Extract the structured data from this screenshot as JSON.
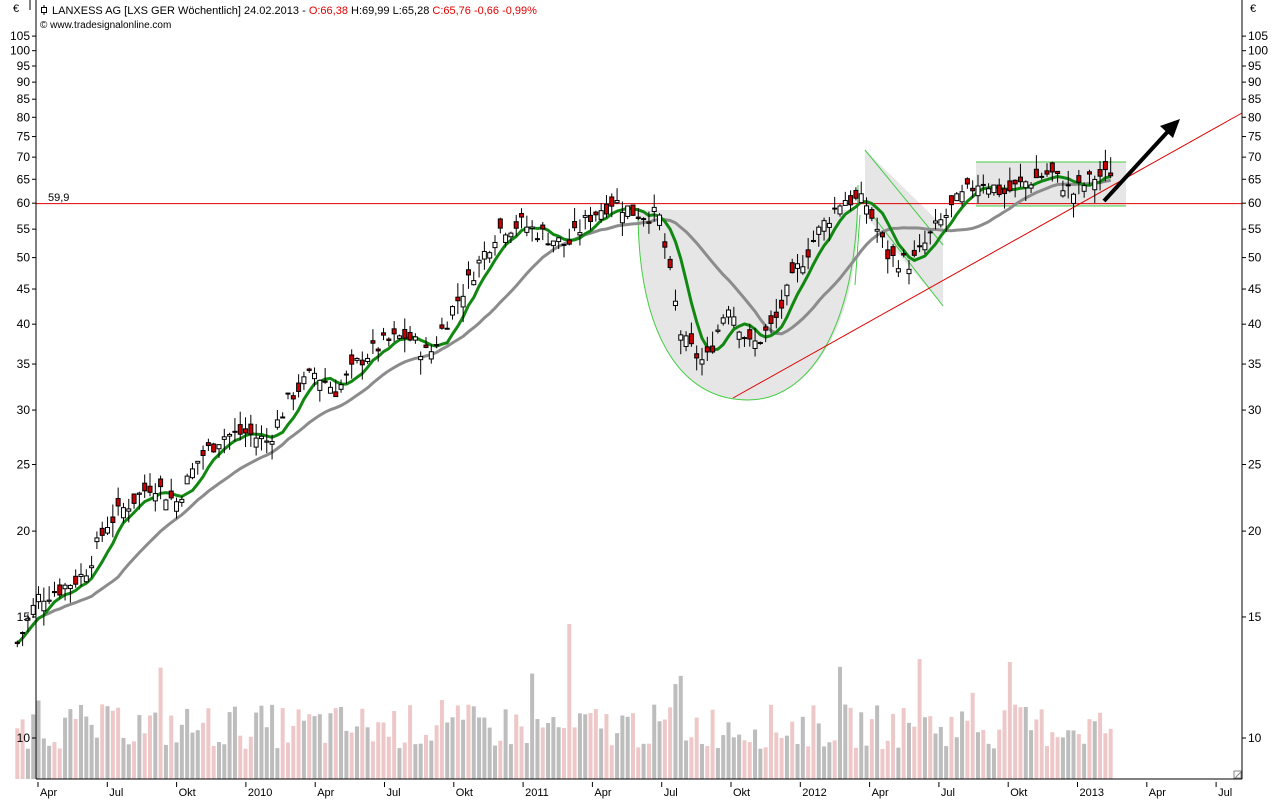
{
  "header": {
    "currency_left": "€",
    "currency_right": "€",
    "instrument": "LANXESS AG [LXS GER  Wöchentlich] 24.02.2013 - ",
    "open": "O:66,38",
    "high": "H:69,99",
    "low": "L:65,28",
    "close_change": "C:65,76 -0,66 -0,99%",
    "source": "www.tradesignalonline.com"
  },
  "colors": {
    "axis": "#000000",
    "candle_up_fill": "#ffffff",
    "candle_down_fill": "#cc0000",
    "ma_fast": "#118811",
    "ma_slow": "#8c8c8c",
    "support_line": "#e00000",
    "trend_line": "#e00000",
    "pattern_outline": "#44cc44",
    "pattern_fill": "#e6e6e6",
    "volume_up": "#bdbdbd",
    "volume_down": "#eec8c8",
    "arrow": "#000000"
  },
  "chart_data": {
    "type": "candlestick",
    "title": "LANXESS AG [LXS GER Wöchentlich] 24.02.2013",
    "last_bar": {
      "date": "24.02.2013",
      "open": 66.38,
      "high": 69.99,
      "low": 65.28,
      "close": 65.76,
      "change": -0.66,
      "change_pct": -0.99
    },
    "yscale": "log",
    "ylim": [
      8.5,
      110
    ],
    "yticks": [
      10,
      15,
      20,
      25,
      30,
      35,
      40,
      45,
      50,
      55,
      60,
      65,
      70,
      75,
      80,
      85,
      90,
      95,
      100,
      105
    ],
    "xticks": [
      "Apr",
      "Jul",
      "Okt",
      "2010",
      "Apr",
      "Jul",
      "Okt",
      "2011",
      "Apr",
      "Jul",
      "Okt",
      "2012",
      "Apr",
      "Jul",
      "Okt",
      "2013",
      "Apr",
      "Jul"
    ],
    "xrange": [
      "Mar 2009",
      "Aug 2013"
    ],
    "ylabel": "€",
    "annotations": [
      {
        "type": "horizontal_line",
        "value": 59.9,
        "label": "59,9",
        "color": "#e00000"
      },
      {
        "type": "trend_line",
        "from": [
          "Okt 2011",
          31.2
        ],
        "to": [
          "Aug 2013",
          81
        ],
        "color": "#e00000"
      },
      {
        "type": "cup",
        "from": "Jun 2011",
        "to": "Mar 2012",
        "top": 58.5,
        "bottom": 31
      },
      {
        "type": "flag_channel",
        "from": "Mar 2012",
        "to": "Jul 2012"
      },
      {
        "type": "rectangle",
        "from": "Sep 2012",
        "to": "Feb 2013",
        "top": 69,
        "bottom": 59.9
      },
      {
        "type": "arrow",
        "from": [
          "Jan 2013",
          61
        ],
        "to": [
          "Apr 2013",
          79
        ],
        "direction": "up"
      }
    ],
    "series": [
      {
        "name": "Close (approx. weekly path)",
        "points": [
          [
            "2009-03",
            13.5
          ],
          [
            "2009-04",
            16.0
          ],
          [
            "2009-05",
            16.5
          ],
          [
            "2009-06",
            17.3
          ],
          [
            "2009-07",
            20.5
          ],
          [
            "2009-08",
            22.0
          ],
          [
            "2009-09",
            23.5
          ],
          [
            "2009-10",
            22.0
          ],
          [
            "2009-11",
            25.5
          ],
          [
            "2009-12",
            27.5
          ],
          [
            "2010-01",
            27.8
          ],
          [
            "2010-02",
            27.0
          ],
          [
            "2010-03",
            31.5
          ],
          [
            "2010-04",
            34.0
          ],
          [
            "2010-05",
            32.0
          ],
          [
            "2010-06",
            35.5
          ],
          [
            "2010-07",
            37.5
          ],
          [
            "2010-08",
            38.5
          ],
          [
            "2010-09",
            36.0
          ],
          [
            "2010-10",
            42.0
          ],
          [
            "2010-11",
            48.0
          ],
          [
            "2010-12",
            55.0
          ],
          [
            "2011-01",
            56.0
          ],
          [
            "2011-02",
            54.0
          ],
          [
            "2011-03",
            52.0
          ],
          [
            "2011-04",
            57.5
          ],
          [
            "2011-05",
            60.5
          ],
          [
            "2011-06",
            58.0
          ],
          [
            "2011-07",
            57.5
          ],
          [
            "2011-08",
            38.0
          ],
          [
            "2011-09",
            35.0
          ],
          [
            "2011-10",
            43.0
          ],
          [
            "2011-11",
            37.0
          ],
          [
            "2011-12",
            40.0
          ],
          [
            "2012-01",
            48.0
          ],
          [
            "2012-02",
            55.0
          ],
          [
            "2012-03",
            61.0
          ],
          [
            "2012-04",
            60.0
          ],
          [
            "2012-05",
            50.0
          ],
          [
            "2012-06",
            49.0
          ],
          [
            "2012-07",
            55.0
          ],
          [
            "2012-08",
            60.5
          ],
          [
            "2012-09",
            65.0
          ],
          [
            "2012-10",
            62.0
          ],
          [
            "2012-11",
            64.5
          ],
          [
            "2012-12",
            66.5
          ],
          [
            "2013-01",
            62.0
          ],
          [
            "2013-02",
            65.76
          ]
        ]
      },
      {
        "name": "Moving Average (fast, green)",
        "color": "#118811"
      },
      {
        "name": "Moving Average (slow, gray)",
        "color": "#8c8c8c"
      },
      {
        "name": "Volume",
        "position": "bottom overlay",
        "colors": [
          "#bdbdbd",
          "#eec8c8"
        ]
      }
    ],
    "grid": false,
    "legend": "none"
  }
}
